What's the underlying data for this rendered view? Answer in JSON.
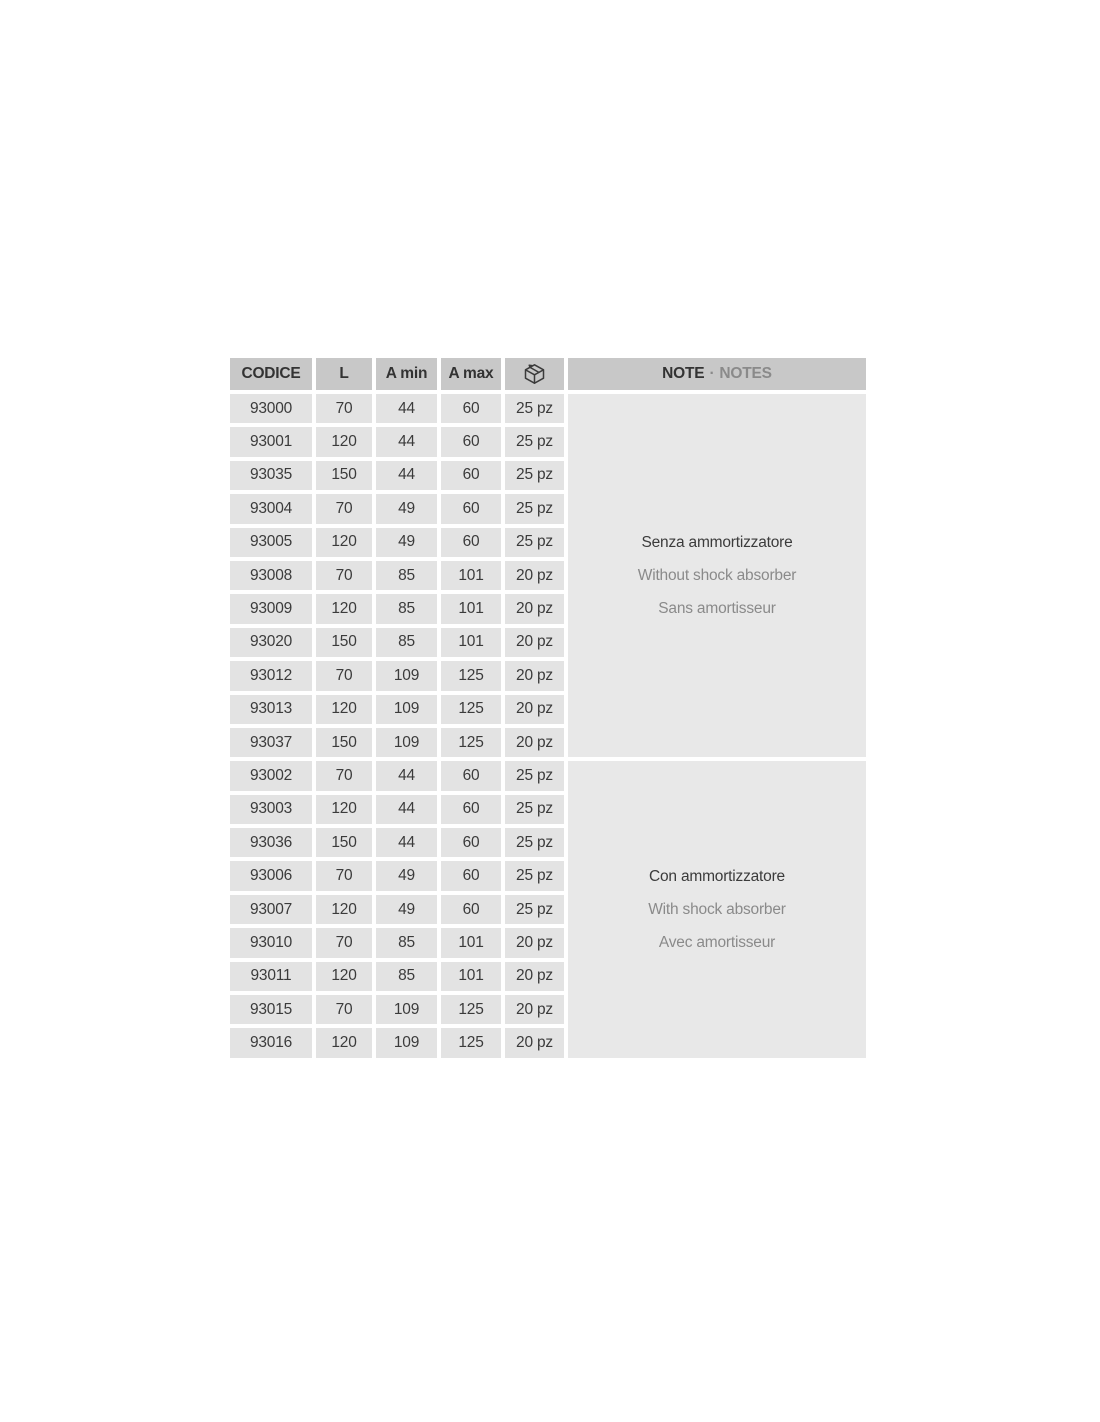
{
  "page": {
    "background": "#ffffff"
  },
  "table": {
    "headers": {
      "codice": "CODICE",
      "l": "L",
      "a_min": "A min",
      "a_max": "A max",
      "pack_icon": "package-icon",
      "note_primary": "NOTE",
      "note_separator": "·",
      "note_secondary": "NOTES"
    },
    "colors": {
      "header_bg": "#c8c8c8",
      "cell_bg": "#e3e3e3",
      "note_bg": "#e8e8e8",
      "text_dark": "#3b3b3b",
      "text_gray": "#8a8a8a"
    },
    "groups": [
      {
        "note_it": "Senza ammortizzatore",
        "note_en": "Without shock absorber",
        "note_fr": "Sans amortisseur",
        "rows": [
          {
            "codice": "93000",
            "l": "70",
            "a_min": "44",
            "a_max": "60",
            "pack": "25 pz"
          },
          {
            "codice": "93001",
            "l": "120",
            "a_min": "44",
            "a_max": "60",
            "pack": "25 pz"
          },
          {
            "codice": "93035",
            "l": "150",
            "a_min": "44",
            "a_max": "60",
            "pack": "25 pz"
          },
          {
            "codice": "93004",
            "l": "70",
            "a_min": "49",
            "a_max": "60",
            "pack": "25 pz"
          },
          {
            "codice": "93005",
            "l": "120",
            "a_min": "49",
            "a_max": "60",
            "pack": "25 pz"
          },
          {
            "codice": "93008",
            "l": "70",
            "a_min": "85",
            "a_max": "101",
            "pack": "20 pz"
          },
          {
            "codice": "93009",
            "l": "120",
            "a_min": "85",
            "a_max": "101",
            "pack": "20 pz"
          },
          {
            "codice": "93020",
            "l": "150",
            "a_min": "85",
            "a_max": "101",
            "pack": "20 pz"
          },
          {
            "codice": "93012",
            "l": "70",
            "a_min": "109",
            "a_max": "125",
            "pack": "20 pz"
          },
          {
            "codice": "93013",
            "l": "120",
            "a_min": "109",
            "a_max": "125",
            "pack": "20 pz"
          },
          {
            "codice": "93037",
            "l": "150",
            "a_min": "109",
            "a_max": "125",
            "pack": "20 pz"
          }
        ]
      },
      {
        "note_it": "Con ammortizzatore",
        "note_en": "With shock absorber",
        "note_fr": "Avec amortisseur",
        "rows": [
          {
            "codice": "93002",
            "l": "70",
            "a_min": "44",
            "a_max": "60",
            "pack": "25 pz"
          },
          {
            "codice": "93003",
            "l": "120",
            "a_min": "44",
            "a_max": "60",
            "pack": "25 pz"
          },
          {
            "codice": "93036",
            "l": "150",
            "a_min": "44",
            "a_max": "60",
            "pack": "25 pz"
          },
          {
            "codice": "93006",
            "l": "70",
            "a_min": "49",
            "a_max": "60",
            "pack": "25 pz"
          },
          {
            "codice": "93007",
            "l": "120",
            "a_min": "49",
            "a_max": "60",
            "pack": "25 pz"
          },
          {
            "codice": "93010",
            "l": "70",
            "a_min": "85",
            "a_max": "101",
            "pack": "20 pz"
          },
          {
            "codice": "93011",
            "l": "120",
            "a_min": "85",
            "a_max": "101",
            "pack": "20 pz"
          },
          {
            "codice": "93015",
            "l": "70",
            "a_min": "109",
            "a_max": "125",
            "pack": "20 pz"
          },
          {
            "codice": "93016",
            "l": "120",
            "a_min": "109",
            "a_max": "125",
            "pack": "20 pz"
          }
        ]
      }
    ]
  }
}
